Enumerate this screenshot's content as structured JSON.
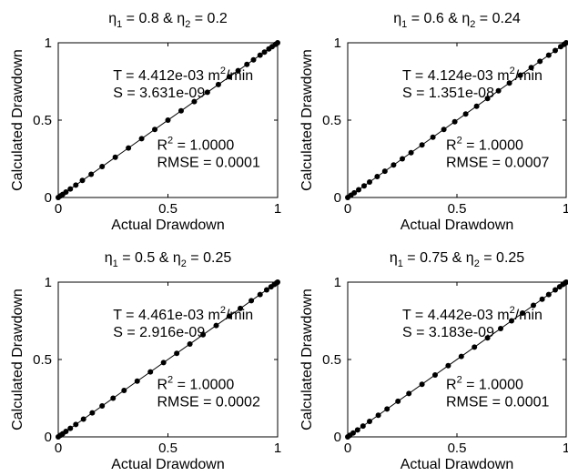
{
  "chart_data": [
    {
      "type": "scatter",
      "title": {
        "eta1_label": "η",
        "eta1_sub": "1",
        "eta1_value": " = 0.8 & ",
        "eta2_label": "η",
        "eta2_sub": "2",
        "eta2_value": " = 0.2"
      },
      "xlabel": "Actual Drawdown",
      "ylabel": "Calculated Drawdown",
      "xlim": [
        0,
        1
      ],
      "ylim": [
        0,
        1
      ],
      "xticks": [
        "0",
        "0.5",
        "1"
      ],
      "yticks": [
        "0",
        "0.5",
        "1"
      ],
      "annotations": {
        "T": "T  = 4.412e-03 m",
        "T_sup": "2",
        "T_unit": "/min",
        "S": "S = 3.631e-09",
        "R2": "R",
        "R2_sup": "2",
        "R2_value": "  = 1.0000",
        "RMSE": "RMSE = 0.0001"
      },
      "x": [
        0,
        0.01,
        0.02,
        0.035,
        0.055,
        0.08,
        0.11,
        0.15,
        0.2,
        0.26,
        0.32,
        0.38,
        0.44,
        0.5,
        0.56,
        0.62,
        0.68,
        0.73,
        0.78,
        0.82,
        0.86,
        0.89,
        0.92,
        0.94,
        0.96,
        0.975,
        0.99,
        1.0
      ],
      "y": [
        0,
        0.01,
        0.02,
        0.035,
        0.055,
        0.08,
        0.11,
        0.15,
        0.2,
        0.26,
        0.32,
        0.38,
        0.44,
        0.5,
        0.56,
        0.62,
        0.68,
        0.73,
        0.78,
        0.82,
        0.86,
        0.89,
        0.92,
        0.94,
        0.96,
        0.975,
        0.99,
        1.0
      ],
      "fit_line": [
        [
          0,
          0
        ],
        [
          1,
          1
        ]
      ]
    },
    {
      "type": "scatter",
      "title": {
        "eta1_label": "η",
        "eta1_sub": "1",
        "eta1_value": " = 0.6 & ",
        "eta2_label": "η",
        "eta2_sub": "2",
        "eta2_value": " = 0.24"
      },
      "xlabel": "Actual Drawdown",
      "ylabel": "Calculated Drawdown",
      "xlim": [
        0,
        1
      ],
      "ylim": [
        0,
        1
      ],
      "xticks": [
        "0",
        "0.5",
        "1"
      ],
      "yticks": [
        "0",
        "0.5",
        "1"
      ],
      "annotations": {
        "T": "T  = 4.124e-03 m",
        "T_sup": "2",
        "T_unit": "/min",
        "S": "S = 1.351e-08",
        "R2": "R",
        "R2_sup": "2",
        "R2_value": "  = 1.0000",
        "RMSE": "RMSE = 0.0007"
      },
      "x": [
        0,
        0.015,
        0.03,
        0.05,
        0.075,
        0.1,
        0.135,
        0.17,
        0.21,
        0.25,
        0.29,
        0.34,
        0.39,
        0.44,
        0.49,
        0.54,
        0.59,
        0.64,
        0.69,
        0.74,
        0.79,
        0.84,
        0.88,
        0.92,
        0.95,
        0.975,
        0.99,
        1.0
      ],
      "y": [
        0,
        0.015,
        0.03,
        0.05,
        0.075,
        0.1,
        0.135,
        0.17,
        0.21,
        0.25,
        0.29,
        0.34,
        0.39,
        0.44,
        0.49,
        0.54,
        0.59,
        0.64,
        0.69,
        0.74,
        0.79,
        0.84,
        0.88,
        0.92,
        0.95,
        0.975,
        0.99,
        1.0
      ],
      "fit_line": [
        [
          0,
          0
        ],
        [
          1,
          1
        ]
      ]
    },
    {
      "type": "scatter",
      "title": {
        "eta1_label": "η",
        "eta1_sub": "1",
        "eta1_value": " = 0.5 & ",
        "eta2_label": "η",
        "eta2_sub": "2",
        "eta2_value": " = 0.25"
      },
      "xlabel": "Actual Drawdown",
      "ylabel": "Calculated Drawdown",
      "xlim": [
        0,
        1
      ],
      "ylim": [
        0,
        1
      ],
      "xticks": [
        "0",
        "0.5",
        "1"
      ],
      "yticks": [
        "0",
        "0.5",
        "1"
      ],
      "annotations": {
        "T": "T  = 4.461e-03 m",
        "T_sup": "2",
        "T_unit": "/min",
        "S": "S = 2.916e-09",
        "R2": "R",
        "R2_sup": "2",
        "R2_value": "  = 1.0000",
        "RMSE": "RMSE = 0.0002"
      },
      "x": [
        0,
        0.01,
        0.02,
        0.035,
        0.055,
        0.08,
        0.115,
        0.155,
        0.2,
        0.25,
        0.3,
        0.36,
        0.42,
        0.48,
        0.54,
        0.6,
        0.66,
        0.72,
        0.78,
        0.83,
        0.88,
        0.92,
        0.95,
        0.97,
        0.985,
        0.995,
        1.0
      ],
      "y": [
        0,
        0.01,
        0.02,
        0.035,
        0.055,
        0.08,
        0.115,
        0.155,
        0.2,
        0.25,
        0.3,
        0.36,
        0.42,
        0.48,
        0.54,
        0.6,
        0.66,
        0.72,
        0.78,
        0.83,
        0.88,
        0.92,
        0.95,
        0.97,
        0.985,
        0.995,
        1.0
      ],
      "fit_line": [
        [
          0,
          0
        ],
        [
          1,
          1
        ]
      ]
    },
    {
      "type": "scatter",
      "title": {
        "eta1_label": "η",
        "eta1_sub": "1",
        "eta1_value": " = 0.75 & ",
        "eta2_label": "η",
        "eta2_sub": "2",
        "eta2_value": " = 0.25"
      },
      "xlabel": "Actual Drawdown",
      "ylabel": "Calculated Drawdown",
      "xlim": [
        0,
        1
      ],
      "ylim": [
        0,
        1
      ],
      "xticks": [
        "0",
        "0.5",
        "1"
      ],
      "yticks": [
        "0",
        "0.5",
        "1"
      ],
      "annotations": {
        "T": "T  = 4.442e-03 m",
        "T_sup": "2",
        "T_unit": "/min",
        "S": "S = 3.183e-09",
        "R2": "R",
        "R2_sup": "2",
        "R2_value": "  = 1.0000",
        "RMSE": "RMSE = 0.0001"
      },
      "x": [
        0,
        0.01,
        0.025,
        0.045,
        0.07,
        0.1,
        0.14,
        0.18,
        0.23,
        0.28,
        0.34,
        0.4,
        0.46,
        0.52,
        0.58,
        0.64,
        0.7,
        0.75,
        0.8,
        0.85,
        0.89,
        0.92,
        0.95,
        0.97,
        0.985,
        0.995,
        1.0
      ],
      "y": [
        0,
        0.01,
        0.025,
        0.045,
        0.07,
        0.1,
        0.14,
        0.18,
        0.23,
        0.28,
        0.34,
        0.4,
        0.46,
        0.52,
        0.58,
        0.64,
        0.7,
        0.75,
        0.8,
        0.85,
        0.89,
        0.92,
        0.95,
        0.97,
        0.985,
        0.995,
        1.0
      ],
      "fit_line": [
        [
          0,
          0
        ],
        [
          1,
          1
        ]
      ]
    }
  ]
}
